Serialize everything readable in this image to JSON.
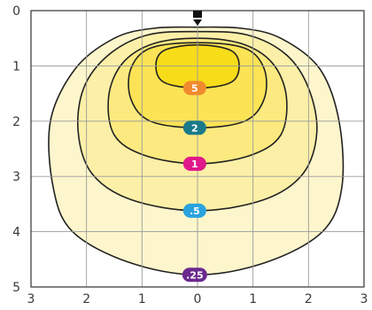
{
  "chart_data": {
    "type": "contour",
    "title": "",
    "xlabel": "",
    "ylabel": "",
    "xlim": [
      -3,
      3
    ],
    "ylim": [
      0,
      5
    ],
    "y_inverted": true,
    "grid": true,
    "x_ticks": [
      {
        "value": -3,
        "label": "3"
      },
      {
        "value": -2,
        "label": "2"
      },
      {
        "value": -1,
        "label": "1"
      },
      {
        "value": 0,
        "label": "0"
      },
      {
        "value": 1,
        "label": "1"
      },
      {
        "value": 2,
        "label": "2"
      },
      {
        "value": 3,
        "label": "3"
      }
    ],
    "y_ticks": [
      {
        "value": 0,
        "label": "0"
      },
      {
        "value": 1,
        "label": "1"
      },
      {
        "value": 2,
        "label": "2"
      },
      {
        "value": 3,
        "label": "3"
      },
      {
        "value": 4,
        "label": "4"
      },
      {
        "value": 5,
        "label": "5"
      }
    ],
    "source": {
      "x": 0,
      "y": 0.05
    },
    "contours": [
      {
        "label": ".25",
        "fill": "#fdf6cc",
        "badge_color": "#6a2a8f",
        "points": [
          [
            0,
            4.78
          ],
          [
            1.25,
            4.55
          ],
          [
            2.25,
            4.0
          ],
          [
            2.6,
            3.2
          ],
          [
            2.55,
            2.0
          ],
          [
            2.2,
            1.05
          ],
          [
            1.5,
            0.5
          ],
          [
            0.8,
            0.32
          ],
          [
            0,
            0.3
          ],
          [
            -0.8,
            0.32
          ],
          [
            -1.5,
            0.5
          ],
          [
            -2.2,
            1.05
          ],
          [
            -2.65,
            2.0
          ],
          [
            -2.6,
            3.2
          ],
          [
            -2.25,
            4.0
          ],
          [
            -1.25,
            4.55
          ]
        ]
      },
      {
        "label": ".5",
        "fill": "#fcf0a8",
        "badge_color": "#29a3de",
        "points": [
          [
            0,
            3.62
          ],
          [
            1.2,
            3.42
          ],
          [
            1.9,
            2.95
          ],
          [
            2.15,
            2.2
          ],
          [
            2.0,
            1.4
          ],
          [
            1.6,
            0.8
          ],
          [
            0.9,
            0.44
          ],
          [
            0,
            0.38
          ],
          [
            -0.9,
            0.44
          ],
          [
            -1.6,
            0.8
          ],
          [
            -2.05,
            1.4
          ],
          [
            -2.15,
            2.2
          ],
          [
            -1.9,
            2.95
          ],
          [
            -1.2,
            3.42
          ]
        ]
      },
      {
        "label": "1",
        "fill": "#fcea80",
        "badge_color": "#e0188a",
        "points": [
          [
            0,
            2.77
          ],
          [
            0.95,
            2.62
          ],
          [
            1.5,
            2.25
          ],
          [
            1.6,
            1.55
          ],
          [
            1.35,
            0.95
          ],
          [
            0.8,
            0.6
          ],
          [
            0,
            0.5
          ],
          [
            -0.8,
            0.6
          ],
          [
            -1.35,
            0.95
          ],
          [
            -1.6,
            1.55
          ],
          [
            -1.5,
            2.25
          ],
          [
            -0.95,
            2.62
          ]
        ]
      },
      {
        "label": "2",
        "fill": "#fbe355",
        "badge_color": "#1a7a8a",
        "points": [
          [
            0,
            2.12
          ],
          [
            0.85,
            2.0
          ],
          [
            1.2,
            1.6
          ],
          [
            1.2,
            1.05
          ],
          [
            0.85,
            0.68
          ],
          [
            0,
            0.58
          ],
          [
            -0.85,
            0.68
          ],
          [
            -1.2,
            1.05
          ],
          [
            -1.2,
            1.6
          ],
          [
            -0.85,
            2.0
          ]
        ]
      },
      {
        "label": "5",
        "fill": "#f7dc1a",
        "badge_color": "#f08a2e",
        "points": [
          [
            0,
            1.4
          ],
          [
            0.6,
            1.3
          ],
          [
            0.75,
            1.0
          ],
          [
            0.6,
            0.72
          ],
          [
            0,
            0.62
          ],
          [
            -0.6,
            0.72
          ],
          [
            -0.75,
            1.0
          ],
          [
            -0.6,
            1.3
          ]
        ]
      }
    ],
    "badges": [
      {
        "label": "5",
        "x": -0.05,
        "y": 1.4
      },
      {
        "label": "2",
        "x": -0.05,
        "y": 2.12
      },
      {
        "label": "1",
        "x": -0.05,
        "y": 2.77
      },
      {
        "label": ".5",
        "x": -0.05,
        "y": 3.62
      },
      {
        "label": ".25",
        "x": -0.05,
        "y": 4.78
      }
    ]
  }
}
